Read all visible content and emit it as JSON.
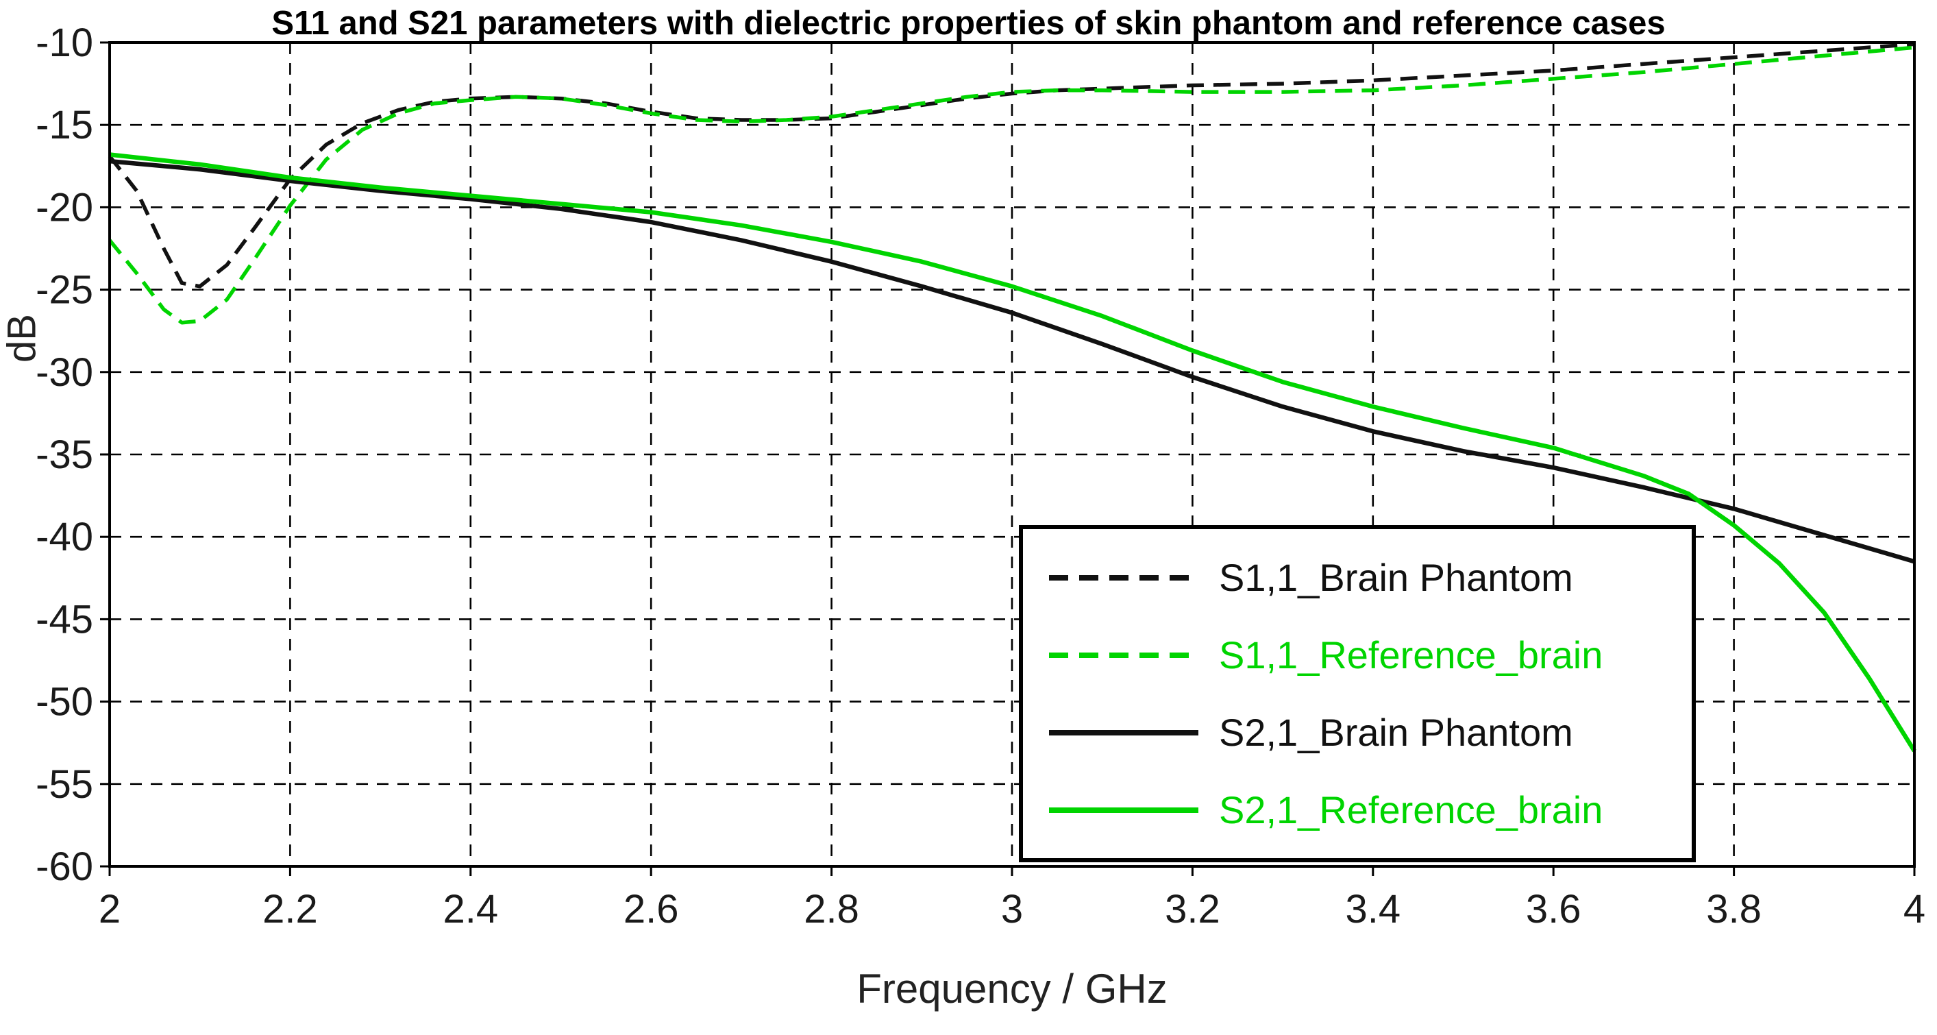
{
  "title": "S11 and S21 parameters with dielectric properties of skin phantom and reference cases",
  "colors": {
    "black_series": "#111111",
    "green_series": "#00d400",
    "grid": "#000000",
    "tick_text": "#1a1a1a"
  },
  "chart_data": {
    "type": "line",
    "title": "S11 and S21 parameters with dielectric properties of skin phantom and reference cases",
    "xlabel": "Frequency / GHz",
    "ylabel": "dB",
    "xlim": [
      2,
      4
    ],
    "ylim": [
      -60,
      -10
    ],
    "grid": true,
    "legend_position": "lower right inset box",
    "x_ticks": [
      2,
      2.2,
      2.4,
      2.6,
      2.8,
      3,
      3.2,
      3.4,
      3.6,
      3.8,
      4
    ],
    "x_tick_labels": [
      "2",
      "2.2",
      "2.4",
      "2.6",
      "2.8",
      "3",
      "3.2",
      "3.4",
      "3.6",
      "3.8",
      "4"
    ],
    "y_ticks": [
      -10,
      -15,
      -20,
      -25,
      -30,
      -35,
      -40,
      -45,
      -50,
      -55,
      -60
    ],
    "y_tick_labels": [
      "-10",
      "-15",
      "-20",
      "-25",
      "-30",
      "-35",
      "-40",
      "-45",
      "-50",
      "-55",
      "-60"
    ],
    "series": [
      {
        "name": "S1,1_Brain Phantom",
        "color": "#111111",
        "style": "dashed",
        "points": [
          [
            2.0,
            -16.9
          ],
          [
            2.03,
            -19.0
          ],
          [
            2.06,
            -22.5
          ],
          [
            2.08,
            -24.6
          ],
          [
            2.1,
            -24.8
          ],
          [
            2.13,
            -23.5
          ],
          [
            2.16,
            -21.3
          ],
          [
            2.2,
            -18.3
          ],
          [
            2.24,
            -16.2
          ],
          [
            2.28,
            -14.9
          ],
          [
            2.32,
            -14.1
          ],
          [
            2.36,
            -13.6
          ],
          [
            2.4,
            -13.4
          ],
          [
            2.45,
            -13.3
          ],
          [
            2.5,
            -13.4
          ],
          [
            2.55,
            -13.7
          ],
          [
            2.6,
            -14.2
          ],
          [
            2.65,
            -14.6
          ],
          [
            2.7,
            -14.7
          ],
          [
            2.75,
            -14.7
          ],
          [
            2.8,
            -14.6
          ],
          [
            2.85,
            -14.2
          ],
          [
            2.9,
            -13.8
          ],
          [
            2.95,
            -13.4
          ],
          [
            3.0,
            -13.1
          ],
          [
            3.05,
            -12.9
          ],
          [
            3.1,
            -12.8
          ],
          [
            3.2,
            -12.6
          ],
          [
            3.3,
            -12.5
          ],
          [
            3.4,
            -12.3
          ],
          [
            3.5,
            -12.0
          ],
          [
            3.6,
            -11.7
          ],
          [
            3.7,
            -11.3
          ],
          [
            3.8,
            -10.9
          ],
          [
            3.9,
            -10.5
          ],
          [
            4.0,
            -10.1
          ]
        ]
      },
      {
        "name": "S1,1_Reference_brain",
        "color": "#00d400",
        "style": "dashed",
        "points": [
          [
            2.0,
            -22.0
          ],
          [
            2.03,
            -24.0
          ],
          [
            2.06,
            -26.2
          ],
          [
            2.08,
            -27.0
          ],
          [
            2.1,
            -26.9
          ],
          [
            2.13,
            -25.6
          ],
          [
            2.16,
            -23.2
          ],
          [
            2.2,
            -19.9
          ],
          [
            2.24,
            -17.1
          ],
          [
            2.28,
            -15.3
          ],
          [
            2.32,
            -14.3
          ],
          [
            2.36,
            -13.7
          ],
          [
            2.4,
            -13.5
          ],
          [
            2.45,
            -13.3
          ],
          [
            2.5,
            -13.4
          ],
          [
            2.55,
            -13.8
          ],
          [
            2.6,
            -14.3
          ],
          [
            2.65,
            -14.7
          ],
          [
            2.7,
            -14.8
          ],
          [
            2.75,
            -14.7
          ],
          [
            2.8,
            -14.5
          ],
          [
            2.85,
            -14.1
          ],
          [
            2.9,
            -13.7
          ],
          [
            2.95,
            -13.3
          ],
          [
            3.0,
            -13.0
          ],
          [
            3.05,
            -12.9
          ],
          [
            3.1,
            -12.9
          ],
          [
            3.2,
            -13.0
          ],
          [
            3.3,
            -13.0
          ],
          [
            3.4,
            -12.9
          ],
          [
            3.5,
            -12.6
          ],
          [
            3.6,
            -12.2
          ],
          [
            3.7,
            -11.8
          ],
          [
            3.8,
            -11.3
          ],
          [
            3.9,
            -10.8
          ],
          [
            4.0,
            -10.3
          ]
        ]
      },
      {
        "name": "S2,1_Brain Phantom",
        "color": "#111111",
        "style": "solid",
        "points": [
          [
            2.0,
            -17.2
          ],
          [
            2.1,
            -17.7
          ],
          [
            2.2,
            -18.4
          ],
          [
            2.3,
            -19.0
          ],
          [
            2.4,
            -19.5
          ],
          [
            2.5,
            -20.1
          ],
          [
            2.6,
            -20.9
          ],
          [
            2.7,
            -22.0
          ],
          [
            2.8,
            -23.3
          ],
          [
            2.9,
            -24.8
          ],
          [
            3.0,
            -26.4
          ],
          [
            3.1,
            -28.3
          ],
          [
            3.2,
            -30.3
          ],
          [
            3.3,
            -32.1
          ],
          [
            3.4,
            -33.6
          ],
          [
            3.5,
            -34.8
          ],
          [
            3.6,
            -35.8
          ],
          [
            3.7,
            -37.0
          ],
          [
            3.8,
            -38.3
          ],
          [
            3.9,
            -39.9
          ],
          [
            4.0,
            -41.5
          ]
        ]
      },
      {
        "name": "S2,1_Reference_brain",
        "color": "#00d400",
        "style": "solid",
        "points": [
          [
            2.0,
            -16.8
          ],
          [
            2.1,
            -17.4
          ],
          [
            2.2,
            -18.2
          ],
          [
            2.3,
            -18.8
          ],
          [
            2.4,
            -19.3
          ],
          [
            2.5,
            -19.8
          ],
          [
            2.6,
            -20.3
          ],
          [
            2.7,
            -21.1
          ],
          [
            2.8,
            -22.1
          ],
          [
            2.9,
            -23.3
          ],
          [
            3.0,
            -24.8
          ],
          [
            3.1,
            -26.6
          ],
          [
            3.2,
            -28.7
          ],
          [
            3.3,
            -30.6
          ],
          [
            3.4,
            -32.1
          ],
          [
            3.5,
            -33.4
          ],
          [
            3.6,
            -34.6
          ],
          [
            3.7,
            -36.3
          ],
          [
            3.75,
            -37.4
          ],
          [
            3.8,
            -39.3
          ],
          [
            3.85,
            -41.6
          ],
          [
            3.9,
            -44.6
          ],
          [
            3.95,
            -48.6
          ],
          [
            4.0,
            -53.0
          ]
        ]
      }
    ]
  }
}
